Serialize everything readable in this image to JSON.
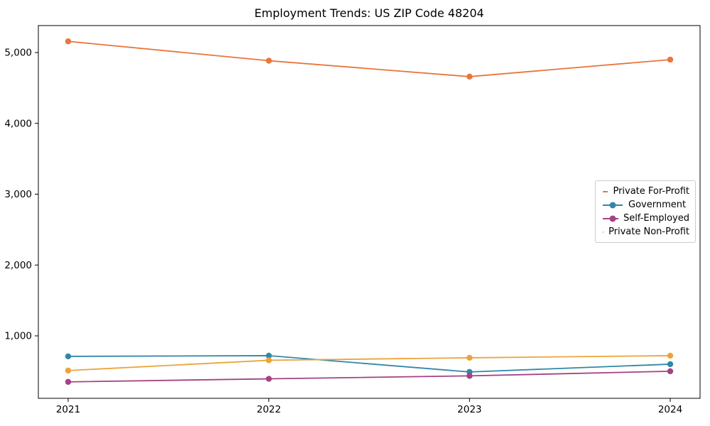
{
  "window": {
    "background_color": "#ffffff",
    "text_color": "#000000",
    "axis_color": "#000000",
    "legend_border_color": "#cccccc"
  },
  "chart_data": {
    "type": "line",
    "title": "Employment Trends: US ZIP Code 48204",
    "xlabel": "",
    "ylabel": "",
    "categories": [
      "2021",
      "2022",
      "2023",
      "2024"
    ],
    "series": [
      {
        "name": "Private For-Profit",
        "color": "#e8763d",
        "values": [
          5158,
          4885,
          4660,
          4900
        ]
      },
      {
        "name": "Government",
        "color": "#3287a8",
        "values": [
          710,
          720,
          490,
          600
        ]
      },
      {
        "name": "Self-Employed",
        "color": "#a34284",
        "values": [
          350,
          393,
          435,
          500
        ]
      },
      {
        "name": "Private Non-Profit",
        "color": "#eda33b",
        "values": [
          510,
          655,
          690,
          720
        ]
      }
    ],
    "ylim": [
      118,
      5381
    ],
    "yticks": [
      1000,
      2000,
      3000,
      4000,
      5000
    ],
    "ytick_labels": [
      "1,000",
      "2,000",
      "3,000",
      "4,000",
      "5,000"
    ],
    "grid": false,
    "legend_position": "center-right",
    "marker": "circle"
  }
}
